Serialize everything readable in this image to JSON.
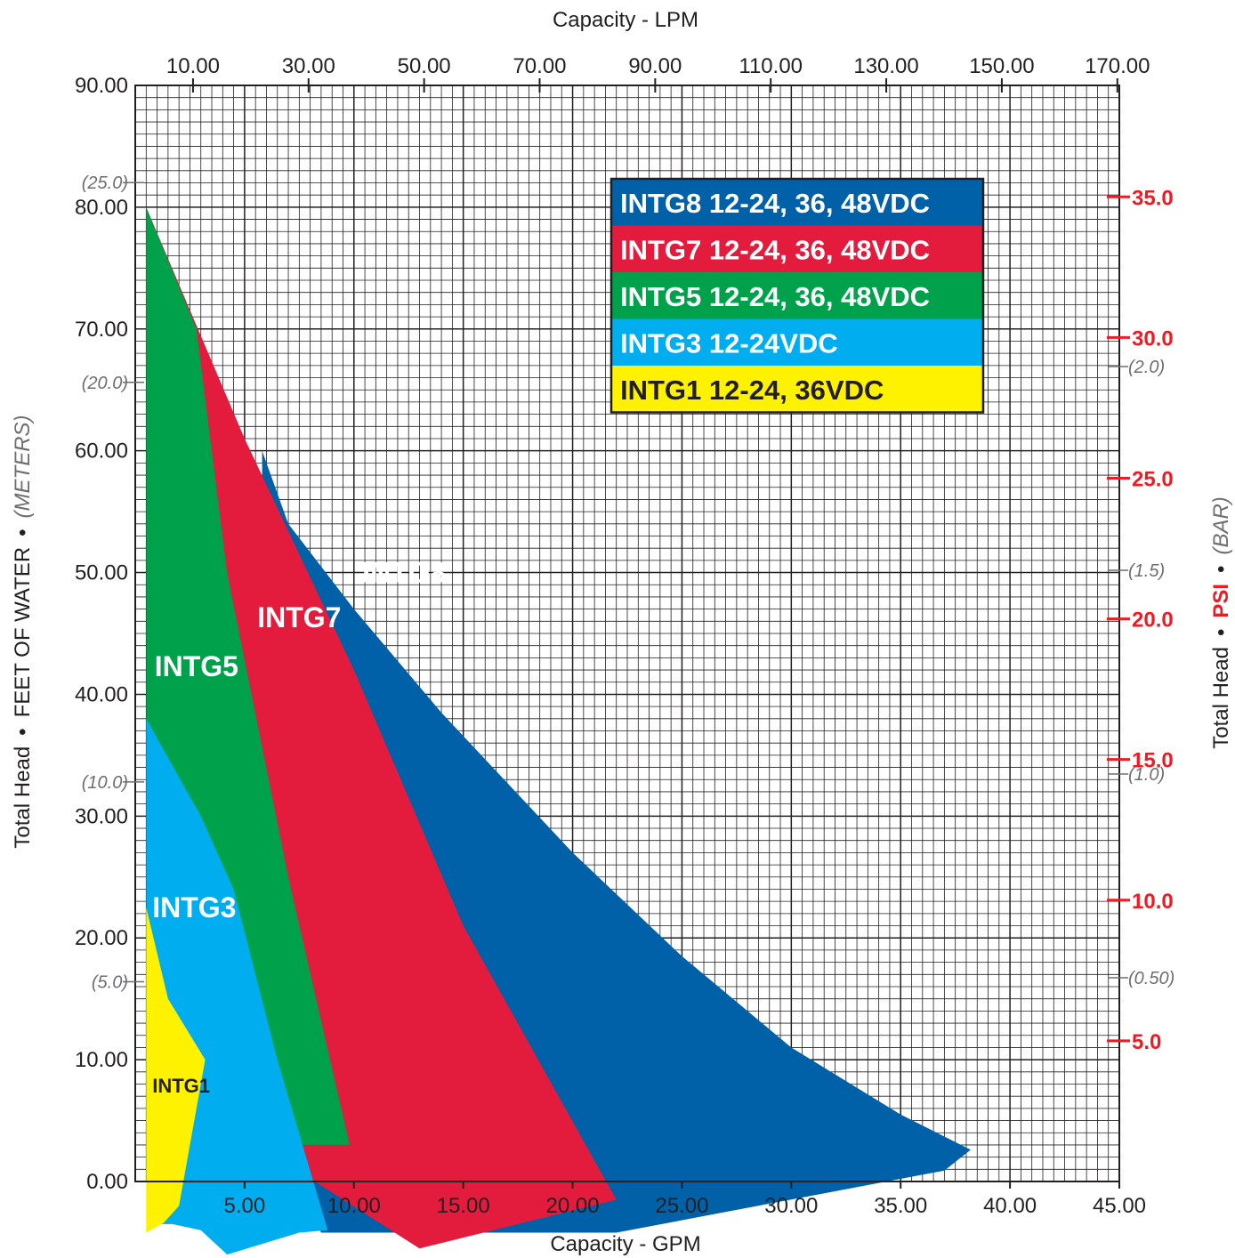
{
  "chart_data": {
    "type": "area",
    "x_axis": {
      "title": "Capacity - GPM",
      "range": [
        0,
        45
      ],
      "ticks": [
        "5.00",
        "10.00",
        "15.00",
        "20.00",
        "25.00",
        "30.00",
        "35.00",
        "40.00",
        "45.00"
      ]
    },
    "x2_axis": {
      "title": "Capacity - LPM",
      "ticks": [
        "10.00",
        "30.00",
        "50.00",
        "70.00",
        "90.00",
        "110.00",
        "130.00",
        "150.00",
        "170.00"
      ]
    },
    "y_axis": {
      "title_parts": [
        "Total Head",
        "•",
        "FEET OF WATER",
        "•",
        "(METERS)"
      ],
      "range": [
        0,
        90
      ],
      "ticks": [
        "0.00",
        "10.00",
        "20.00",
        "30.00",
        "40.00",
        "50.00",
        "60.00",
        "70.00",
        "80.00",
        "90.00"
      ]
    },
    "y_meters": {
      "ticks": [
        {
          "label": "(5.0)",
          "meters": 5.0
        },
        {
          "label": "(10.0)",
          "meters": 10.0
        },
        {
          "label": "(20.0)",
          "meters": 20.0
        },
        {
          "label": "(25.0)",
          "meters": 25.0
        }
      ]
    },
    "y2_axis": {
      "title_parts": [
        "Total Head",
        "•",
        "PSI",
        "•",
        "(BAR)"
      ],
      "psi_ticks": [
        {
          "label": "5.0",
          "psi": 5.0
        },
        {
          "label": "10.0",
          "psi": 10.0
        },
        {
          "label": "15.0",
          "psi": 15.0
        },
        {
          "label": "20.0",
          "psi": 20.0
        },
        {
          "label": "25.0",
          "psi": 25.0
        },
        {
          "label": "30.0",
          "psi": 30.0
        },
        {
          "label": "35.0",
          "psi": 35.0
        }
      ],
      "bar_ticks": [
        {
          "label": "(0.50)",
          "bar": 0.5
        },
        {
          "label": "(1.0)",
          "bar": 1.0
        },
        {
          "label": "(1.5)",
          "bar": 1.5
        },
        {
          "label": "(2.0)",
          "bar": 2.0
        }
      ]
    },
    "grid": true,
    "legend": {
      "position": "top-right",
      "entries": [
        {
          "label": "INTG8 12-24, 36, 48VDC",
          "color": "#0061a8",
          "text_color": "#ffffff"
        },
        {
          "label": "INTG7 12-24, 36, 48VDC",
          "color": "#e31b3c",
          "text_color": "#ffffff"
        },
        {
          "label": "INTG5 12-24, 36, 48VDC",
          "color": "#00a14b",
          "text_color": "#ffffff"
        },
        {
          "label": "INTG3 12-24VDC",
          "color": "#00aeef",
          "text_color": "#ffffff"
        },
        {
          "label": "INTG1 12-24, 36VDC",
          "color": "#fff200",
          "text_color": "#231f20"
        }
      ]
    },
    "series": [
      {
        "name": "INTG8",
        "color": "#0061a8",
        "label_color": "#ffffff",
        "label_at": {
          "x": 12.3,
          "y": 50
        },
        "points": [
          [
            5.8,
            70
          ],
          [
            5.8,
            60
          ],
          [
            7.0,
            54
          ],
          [
            10,
            47
          ],
          [
            14,
            38.5
          ],
          [
            20,
            27
          ],
          [
            25,
            18.5
          ],
          [
            30,
            11
          ],
          [
            35,
            5.5
          ],
          [
            38.2,
            2.6
          ],
          [
            37,
            0.9
          ],
          [
            22,
            -4.2
          ],
          [
            8.5,
            -4.2
          ],
          [
            7.8,
            -1.5
          ],
          [
            5.8,
            1.0
          ]
        ]
      },
      {
        "name": "INTG7",
        "color": "#e31b3c",
        "label_color": "#ffffff",
        "label_at": {
          "x": 7.5,
          "y": 46.3
        },
        "points": [
          [
            0.5,
            80
          ],
          [
            5,
            61
          ],
          [
            10,
            42
          ],
          [
            15,
            21
          ],
          [
            22,
            -1.5
          ],
          [
            13,
            -5.5
          ],
          [
            7.5,
            0.8
          ],
          [
            7,
            3.5
          ],
          [
            5.5,
            10
          ],
          [
            3.3,
            20
          ],
          [
            2.3,
            30
          ],
          [
            2.3,
            40
          ],
          [
            1.5,
            55
          ],
          [
            0.5,
            67
          ]
        ]
      },
      {
        "name": "INTG5",
        "color": "#00a14b",
        "label_color": "#ffffff",
        "label_at": {
          "x": 2.8,
          "y": 42.3
        },
        "points": [
          [
            0.5,
            80
          ],
          [
            2.8,
            70
          ],
          [
            4.2,
            50
          ],
          [
            7.0,
            25
          ],
          [
            9.8,
            3
          ],
          [
            7,
            3
          ],
          [
            5.2,
            15
          ],
          [
            3.8,
            25.5
          ],
          [
            0.5,
            37.5
          ]
        ]
      },
      {
        "name": "INTG3",
        "color": "#00aeef",
        "label_color": "#ffffff",
        "label_at": {
          "x": 2.7,
          "y": 22.5
        },
        "points": [
          [
            0.5,
            38
          ],
          [
            3,
            30
          ],
          [
            4.5,
            24
          ],
          [
            6.5,
            10
          ],
          [
            8.8,
            -4
          ],
          [
            7.5,
            -4.2
          ],
          [
            4.2,
            -6
          ],
          [
            3,
            -4
          ],
          [
            1.7,
            -3.5
          ],
          [
            1.2,
            -3.5
          ],
          [
            0.5,
            0
          ]
        ]
      },
      {
        "name": "INTG1",
        "color": "#fff200",
        "label_color": "#231f20",
        "label_at": {
          "x": 2.1,
          "y": 8.1
        },
        "points": [
          [
            0.5,
            22.5
          ],
          [
            1.5,
            15
          ],
          [
            3.2,
            10
          ],
          [
            2.0,
            -2
          ],
          [
            1.3,
            -3.4
          ],
          [
            0.5,
            -4.2
          ]
        ]
      }
    ]
  }
}
